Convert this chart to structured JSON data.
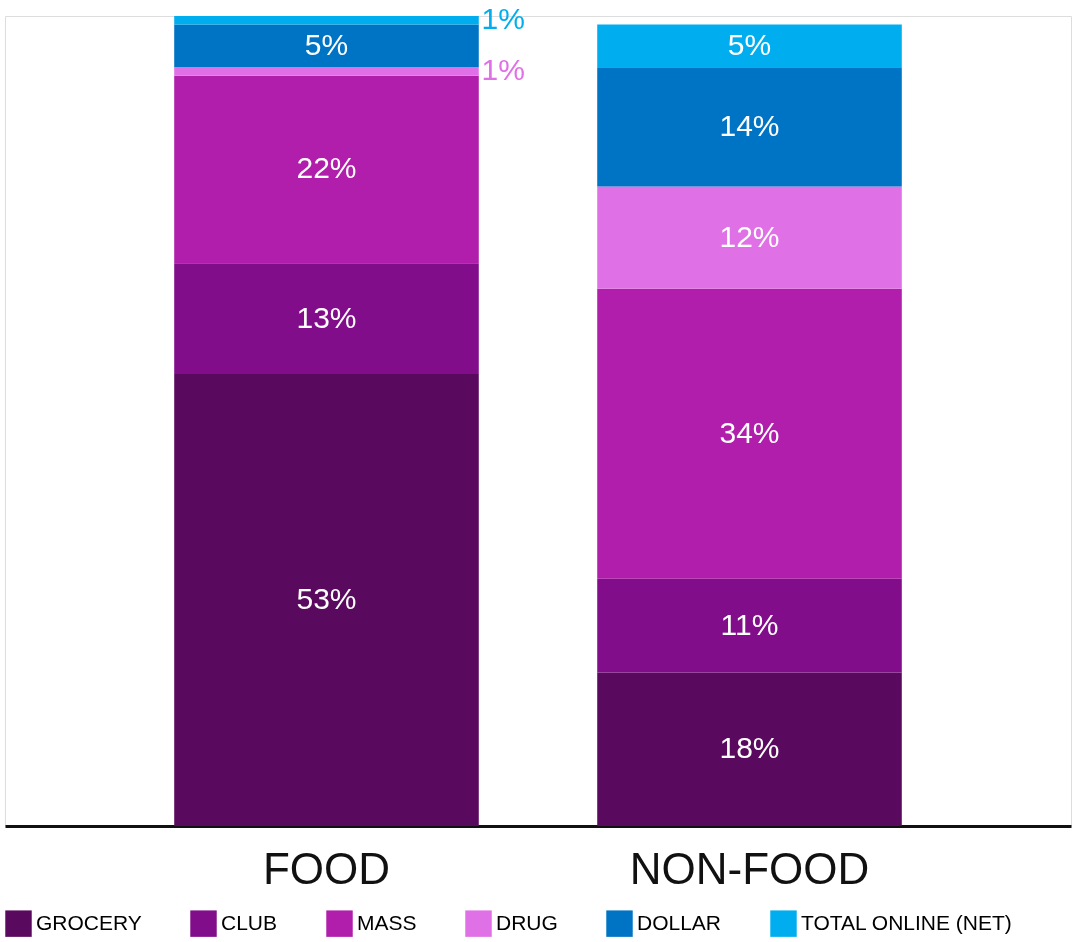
{
  "chart_data": {
    "type": "bar",
    "stacked": true,
    "legend": "bottom",
    "categories": [
      "FOOD",
      "NON-FOOD"
    ],
    "series": [
      {
        "name": "GROCERY",
        "color": "#5a0a5e",
        "values": [
          53,
          18
        ],
        "value_labels": [
          "53%",
          "18%"
        ]
      },
      {
        "name": "CLUB",
        "color": "#810d8b",
        "values": [
          13,
          11
        ],
        "value_labels": [
          "13%",
          "11%"
        ]
      },
      {
        "name": "MASS",
        "color": "#b01eab",
        "values": [
          22,
          34
        ],
        "value_labels": [
          "22%",
          "34%"
        ]
      },
      {
        "name": "DRUG",
        "color": "#e070e6",
        "values": [
          1,
          12
        ],
        "value_labels": [
          "1%",
          "12%"
        ]
      },
      {
        "name": "DOLLAR",
        "color": "#0074c4",
        "values": [
          5,
          14
        ],
        "value_labels": [
          "5%",
          "14%"
        ]
      },
      {
        "name": "TOTAL ONLINE (NET)",
        "color": "#00aeef",
        "values": [
          1,
          5
        ],
        "value_labels": [
          "1%",
          "5%"
        ]
      }
    ]
  }
}
